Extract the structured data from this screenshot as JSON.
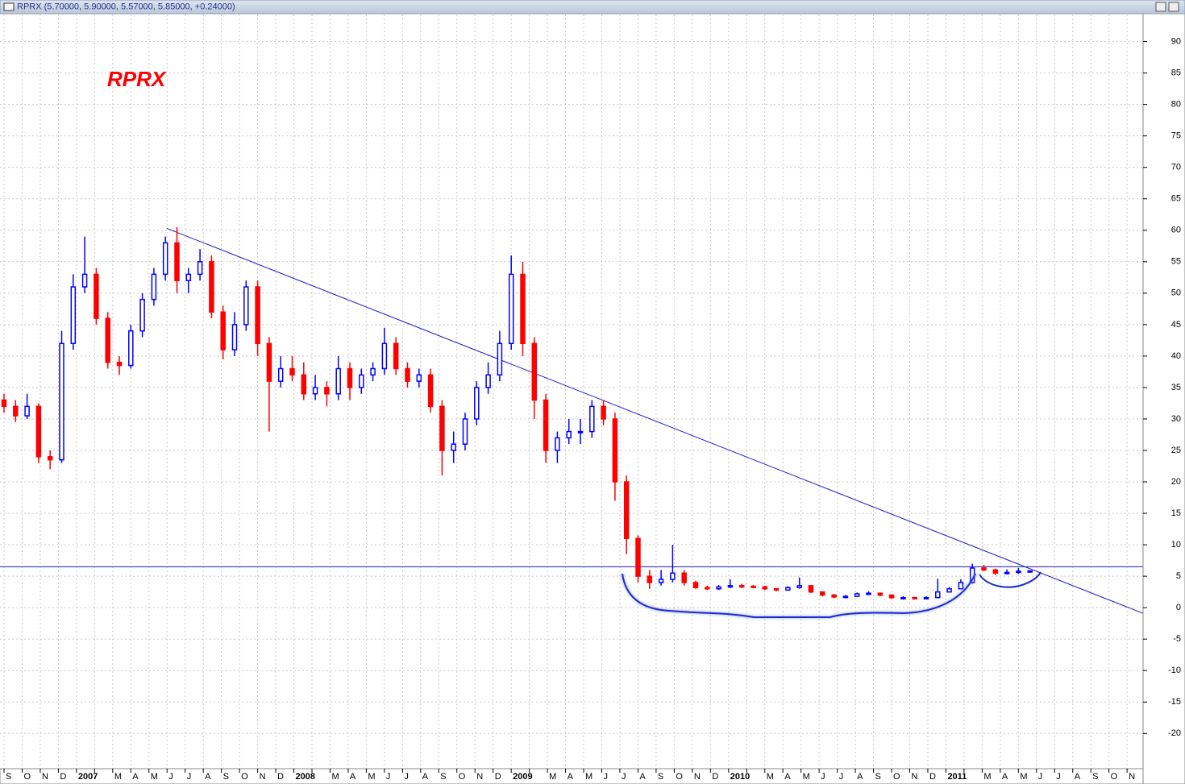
{
  "chart_data": {
    "type": "candlestick",
    "header": "RPRX (5.70000, 5.90000, 5.57000, 5.85000, +0.24000)",
    "annotation": "RPRX",
    "categories": [
      "S",
      "O",
      "N",
      "D",
      "2007",
      null,
      "M",
      "A",
      "M",
      "J",
      "J",
      "A",
      "S",
      "O",
      "N",
      "D",
      "2008",
      null,
      "M",
      "A",
      "M",
      "J",
      "J",
      "A",
      "S",
      "O",
      "N",
      "D",
      "2009",
      null,
      "M",
      "A",
      "M",
      "J",
      "J",
      "A",
      "S",
      "O",
      "N",
      "D",
      "2010",
      null,
      "M",
      "A",
      "M",
      "J",
      "J",
      "A",
      "S",
      "O",
      "N",
      "D",
      "2011",
      null,
      "M",
      "A",
      "M",
      "J",
      "J",
      "A",
      "S",
      "O",
      "N"
    ],
    "candles": [
      [
        33,
        34,
        31,
        32
      ],
      [
        32,
        33,
        29.5,
        30.5
      ],
      [
        30.5,
        34,
        30,
        32
      ],
      [
        32,
        32.5,
        23,
        24
      ],
      [
        24,
        25,
        22,
        23.5
      ],
      [
        23.5,
        44,
        23,
        42
      ],
      [
        42,
        53,
        41,
        51
      ],
      [
        51,
        59,
        50,
        53
      ],
      [
        53,
        54,
        45,
        46
      ],
      [
        46,
        47,
        38,
        39
      ],
      [
        39,
        40,
        37,
        38.5
      ],
      [
        38.5,
        45,
        38,
        44
      ],
      [
        44,
        50,
        43,
        49
      ],
      [
        49,
        54,
        48,
        53
      ],
      [
        53,
        59,
        52,
        58
      ],
      [
        58,
        60.5,
        50,
        52
      ],
      [
        52,
        54,
        50,
        53
      ],
      [
        53,
        57,
        52,
        55
      ],
      [
        55,
        56,
        46,
        47
      ],
      [
        47,
        48,
        39.5,
        41
      ],
      [
        41,
        47,
        40,
        45
      ],
      [
        45,
        52,
        44,
        51
      ],
      [
        51,
        52,
        40,
        42
      ],
      [
        42,
        43,
        28,
        36
      ],
      [
        36,
        40,
        35,
        38
      ],
      [
        38,
        40,
        36,
        37
      ],
      [
        37,
        39,
        33,
        34
      ],
      [
        34,
        37,
        33,
        35
      ],
      [
        35,
        36,
        32,
        34
      ],
      [
        34,
        40,
        33,
        38
      ],
      [
        38,
        39,
        33,
        35
      ],
      [
        35,
        38,
        34,
        37
      ],
      [
        37,
        39,
        36,
        38
      ],
      [
        38,
        44.5,
        37,
        42
      ],
      [
        42,
        43,
        37,
        38
      ],
      [
        38,
        39,
        35,
        36
      ],
      [
        36,
        38,
        35,
        37
      ],
      [
        37,
        38,
        31,
        32
      ],
      [
        32,
        33,
        21,
        25
      ],
      [
        25,
        28,
        23,
        26
      ],
      [
        26,
        31,
        25,
        30
      ],
      [
        30,
        36,
        29,
        35
      ],
      [
        35,
        39,
        34,
        37
      ],
      [
        37,
        44,
        36,
        42
      ],
      [
        42,
        56,
        41,
        53
      ],
      [
        53,
        55,
        40,
        42
      ],
      [
        42,
        43,
        30,
        33
      ],
      [
        33,
        34,
        23,
        25
      ],
      [
        25,
        28,
        23,
        27
      ],
      [
        27,
        30,
        26,
        28
      ],
      [
        28,
        30,
        26,
        28
      ],
      [
        28,
        33,
        27,
        32
      ],
      [
        32,
        33,
        29,
        30
      ],
      [
        30,
        31,
        17,
        20
      ],
      [
        20,
        21,
        8.5,
        11
      ],
      [
        11,
        11.5,
        4,
        5
      ],
      [
        5,
        6,
        3,
        4
      ],
      [
        4,
        6,
        3.5,
        4.5
      ],
      [
        4.5,
        10,
        4,
        5.5
      ],
      [
        5.5,
        6,
        3.5,
        4
      ],
      [
        4,
        4.3,
        3,
        3.2
      ],
      [
        3.2,
        3.5,
        2.8,
        3
      ],
      [
        3,
        3.6,
        2.8,
        3.3
      ],
      [
        3.3,
        4.5,
        3.1,
        3.5
      ],
      [
        3.5,
        3.8,
        3.1,
        3.4
      ],
      [
        3.4,
        3.6,
        3.1,
        3.3
      ],
      [
        3.3,
        3.5,
        2.8,
        3
      ],
      [
        3,
        3.1,
        2.6,
        2.8
      ],
      [
        2.8,
        3.4,
        2.7,
        3.2
      ],
      [
        3.2,
        4.8,
        3,
        3.5
      ],
      [
        3.5,
        3.6,
        2.3,
        2.5
      ],
      [
        2.5,
        2.6,
        1.8,
        2
      ],
      [
        2,
        2.2,
        1.5,
        1.7
      ],
      [
        1.7,
        2,
        1.5,
        1.8
      ],
      [
        1.8,
        2.4,
        1.7,
        2.2
      ],
      [
        2.2,
        2.6,
        2,
        2.3
      ],
      [
        2.3,
        2.4,
        1.8,
        2
      ],
      [
        2,
        2.1,
        1.4,
        1.6
      ],
      [
        1.6,
        1.8,
        1.4,
        1.6
      ],
      [
        1.6,
        1.7,
        1.3,
        1.5
      ],
      [
        1.5,
        1.8,
        1.4,
        1.6
      ],
      [
        1.6,
        4.6,
        1.5,
        2.5
      ],
      [
        2.5,
        3.3,
        2.4,
        3
      ],
      [
        3,
        4.5,
        2.9,
        4
      ],
      [
        4,
        7,
        3.8,
        6.3
      ],
      [
        6.3,
        6.8,
        5.8,
        6
      ],
      [
        6,
        6.2,
        5.2,
        5.5
      ],
      [
        5.5,
        6.1,
        5.3,
        5.6
      ],
      [
        5.6,
        6.3,
        5.4,
        5.8
      ],
      [
        5.7,
        5.9,
        5.57,
        5.85
      ]
    ],
    "up_color": "#0000ff",
    "down_color": "#ff0000",
    "ylim": [
      -25.6,
      94.3
    ],
    "yticks": [
      -20,
      -15,
      -10,
      -5,
      0,
      5,
      10,
      15,
      20,
      25,
      30,
      35,
      40,
      45,
      50,
      55,
      60,
      65,
      70,
      75,
      80,
      85,
      90
    ],
    "grid": true,
    "hline": 6.5,
    "trendline": {
      "start": 60.3,
      "end": -0.9
    }
  }
}
